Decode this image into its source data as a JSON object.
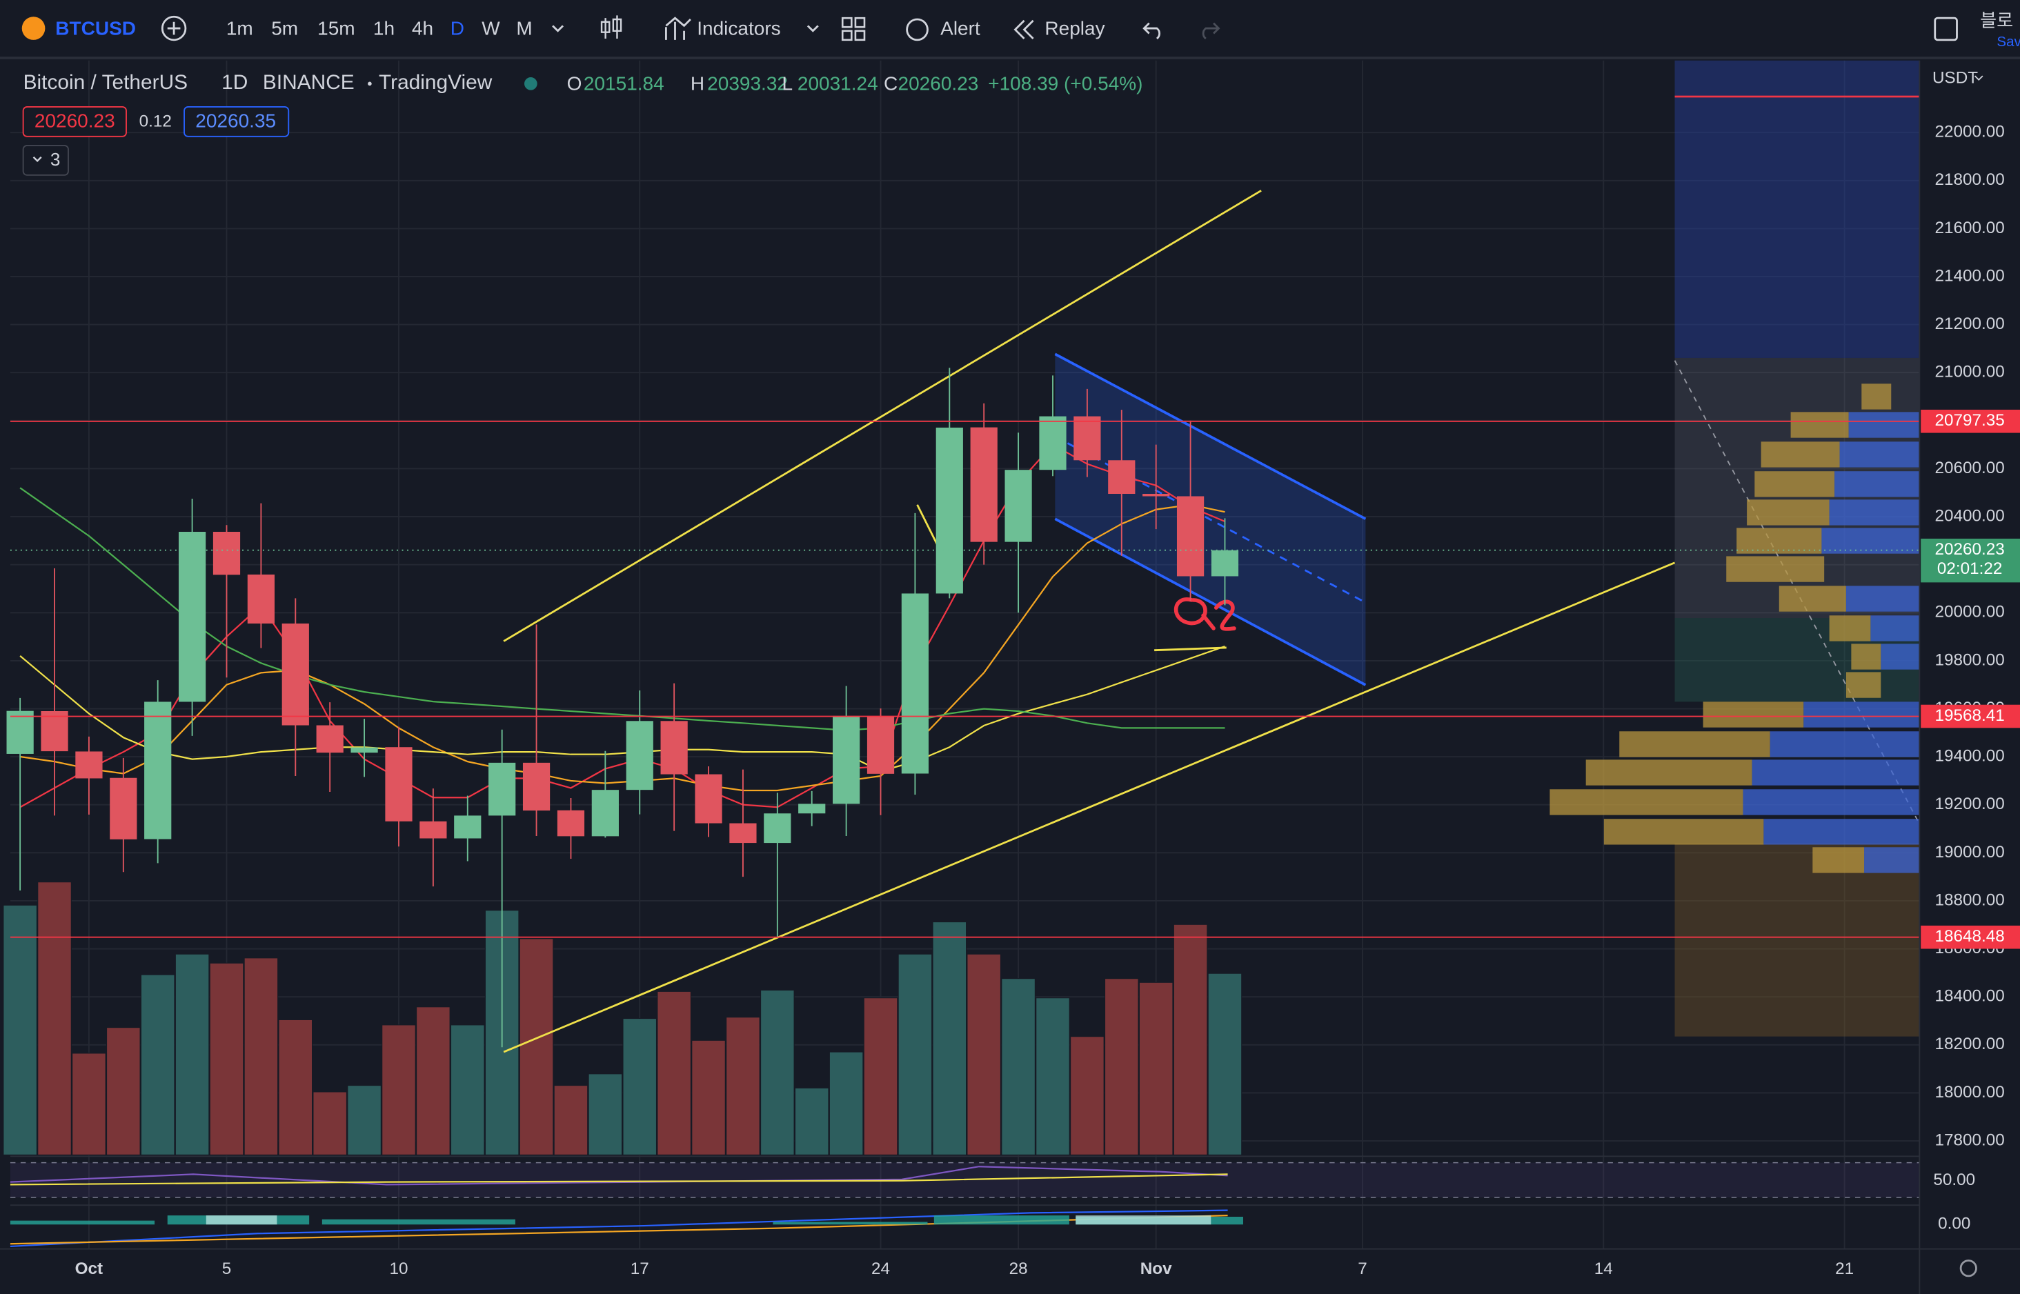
{
  "toolbar": {
    "symbol": "BTCUSD",
    "intervals": [
      "1m",
      "5m",
      "15m",
      "1h",
      "4h",
      "D",
      "W",
      "M"
    ],
    "indicators": "Indicators",
    "alert": "Alert",
    "replay": "Replay",
    "corner_top": "블로",
    "corner_bottom": "Sav"
  },
  "legend": {
    "name": "Bitcoin / TetherUS",
    "interval": "1D",
    "exchange": "BINANCE",
    "source": "TradingView",
    "o": "O",
    "h": "H",
    "l": "L",
    "c": "C",
    "change": "+108.39 (+0.54%)",
    "bid": 20260.23,
    "spread": 0.12,
    "ask": 20260.35,
    "indicator_count": "3"
  },
  "price_scale": {
    "currency": "USDT",
    "countdown": "02:01:22"
  },
  "chart_data": {
    "type": "candlestick",
    "categories": [
      null,
      null,
      "Oct",
      null,
      null,
      null,
      "5",
      null,
      null,
      null,
      null,
      "10",
      null,
      null,
      null,
      null,
      null,
      null,
      "17",
      null,
      null,
      null,
      null,
      null,
      null,
      "24",
      null,
      null,
      null,
      "28",
      null,
      null,
      null,
      "Nov",
      null,
      null,
      null,
      null,
      null,
      "7",
      null,
      null,
      null,
      null,
      null,
      null,
      "14",
      null,
      null,
      null,
      null,
      null,
      null,
      "21",
      null
    ],
    "open": [
      19412,
      19590,
      19422,
      19312,
      19057,
      19629,
      20337,
      20159,
      19955,
      19531,
      19417,
      19440,
      19131,
      19060,
      19155,
      19375,
      19177,
      19069,
      19262,
      19549,
      19327,
      19123,
      19041,
      19164,
      19204,
      19570,
      19330,
      20080,
      20772,
      20295,
      20595,
      20818,
      20635,
      20495,
      20485,
      20151.84,
      null,
      null,
      null,
      null,
      null,
      null,
      null,
      null,
      null,
      null,
      null,
      null,
      null,
      null,
      null,
      null,
      null,
      null,
      null
    ],
    "high": [
      19645,
      20185,
      19484,
      19395,
      19719,
      20475,
      20365,
      20456,
      20060,
      19627,
      19558,
      19525,
      19268,
      19238,
      19513,
      19951,
      19228,
      19424,
      19676,
      19706,
      19360,
      19347,
      19250,
      19257,
      19695,
      19601,
      20415,
      21020,
      20872,
      20750,
      20988,
      20932,
      20845,
      20700,
      20800,
      20393.32,
      null,
      null,
      null,
      null,
      null,
      null,
      null,
      null,
      null,
      null,
      null,
      null,
      null,
      null,
      null,
      null,
      null,
      null,
      null
    ],
    "low": [
      18843,
      19155,
      19159,
      18920,
      18957,
      19487,
      19730,
      19853,
      19320,
      19254,
      19316,
      19026,
      18860,
      18965,
      18190,
      19070,
      18975,
      19063,
      19160,
      19091,
      19066,
      18900,
      18650,
      19111,
      19070,
      19157,
      19242,
      20060,
      20200,
      20000,
      20569,
      20565,
      20237,
      20348,
      20048,
      20031.24,
      null,
      null,
      null,
      null,
      null,
      null,
      null,
      null,
      null,
      null,
      null,
      null,
      null,
      null,
      null,
      null,
      null,
      null,
      null
    ],
    "close": [
      19591,
      19423,
      19310,
      19056,
      19629,
      20337,
      20158,
      19955,
      19531,
      19417,
      19439,
      19131,
      19060,
      19155,
      19375,
      19176,
      19069,
      19262,
      19549,
      19327,
      19123,
      19041,
      19164,
      19204,
      19570,
      19329,
      20080,
      20771,
      20295,
      20595,
      20818,
      20635,
      20495,
      20485,
      20151.84,
      20260.23,
      null,
      null,
      null,
      null,
      null,
      null,
      null,
      null,
      null,
      null,
      null,
      null,
      null,
      null,
      null,
      null,
      null,
      null,
      null
    ],
    "volume": [
      582000,
      636000,
      237000,
      297000,
      420000,
      468000,
      447000,
      459000,
      315000,
      147000,
      162000,
      303000,
      345000,
      303000,
      570000,
      504000,
      162000,
      189000,
      318000,
      381000,
      267000,
      321000,
      384000,
      156000,
      240000,
      366000,
      468000,
      543000,
      468000,
      411000,
      366000,
      276000,
      411000,
      402000,
      537000,
      423000,
      null,
      null,
      null,
      null,
      null,
      null,
      null,
      null,
      null,
      null,
      null,
      null,
      null,
      null,
      null,
      null,
      null,
      null,
      null
    ],
    "volume_lim": [
      0,
      900000
    ],
    "up_color": "#6dbf95",
    "down_color": "#e0555f",
    "volume_up_color": "#2d5e5e",
    "volume_down_color": "#7a3538",
    "lines": [
      {
        "color": "#f23645",
        "values": [
          19190,
          19270,
          19350,
          19420,
          19500,
          19740,
          19900,
          20030,
          19820,
          19550,
          19390,
          19310,
          19230,
          19230,
          19310,
          19310,
          19270,
          19350,
          19390,
          19350,
          19260,
          19200,
          19190,
          19270,
          19350,
          19360,
          19770,
          20030,
          20300,
          20540,
          20700,
          20620,
          20570,
          20530,
          20440,
          20380,
          null,
          null,
          null,
          null,
          null,
          null,
          null,
          null,
          null,
          null,
          null,
          null,
          null,
          null,
          null,
          null,
          null,
          null,
          null
        ]
      },
      {
        "color": "#f5a623",
        "values": [
          19400,
          19380,
          19350,
          19330,
          19400,
          19550,
          19700,
          19750,
          19760,
          19700,
          19620,
          19520,
          19440,
          19380,
          19350,
          19330,
          19300,
          19290,
          19300,
          19310,
          19280,
          19260,
          19260,
          19280,
          19300,
          19320,
          19450,
          19600,
          19750,
          19950,
          20150,
          20290,
          20370,
          20430,
          20450,
          20420,
          null,
          null,
          null,
          null,
          null,
          null,
          null,
          null,
          null,
          null,
          null,
          null,
          null,
          null,
          null,
          null,
          null,
          null,
          null
        ]
      },
      {
        "color": "#f0e14a",
        "values": [
          19820,
          19700,
          19580,
          19480,
          19420,
          19390,
          19400,
          19420,
          19430,
          19440,
          19440,
          19430,
          19420,
          19410,
          19420,
          19420,
          19410,
          19410,
          19420,
          19430,
          19430,
          19420,
          19420,
          19420,
          19410,
          19340,
          19380,
          19440,
          19530,
          19580,
          19620,
          19660,
          19710,
          19760,
          19810,
          19860,
          null,
          null,
          null,
          null,
          null,
          null,
          null,
          null,
          null,
          null,
          null,
          null,
          null,
          null,
          null,
          null,
          null,
          null,
          null
        ]
      },
      {
        "color": "#4caf50",
        "values": [
          20520,
          20420,
          20320,
          20200,
          20080,
          19960,
          19860,
          19790,
          19740,
          19700,
          19670,
          19650,
          19630,
          19620,
          19610,
          19600,
          19590,
          19580,
          19570,
          19560,
          19550,
          19540,
          19530,
          19520,
          19510,
          19520,
          19550,
          19580,
          19600,
          19590,
          19570,
          19540,
          19520,
          19520,
          19520,
          19520,
          null,
          null,
          null,
          null,
          null,
          null,
          null,
          null,
          null,
          null,
          null,
          null,
          null,
          null,
          null,
          null,
          null,
          null,
          null
        ]
      }
    ],
    "price_lines": [
      20797.35,
      19568.41,
      18648.48
    ],
    "price_line_color": "#f23645",
    "ylim": [
      17350,
      22300
    ],
    "yticks": [
      {
        "value": 17800,
        "label": "17800.00"
      },
      {
        "value": 18000,
        "label": "18000.00"
      },
      {
        "value": 18200,
        "label": "18200.00"
      },
      {
        "value": 18400,
        "label": "18400.00"
      },
      {
        "value": 18600,
        "label": "18600.00"
      },
      {
        "value": 18800,
        "label": "18800.00"
      },
      {
        "value": 19000,
        "label": "19000.00"
      },
      {
        "value": 19200,
        "label": "19200.00"
      },
      {
        "value": 19400,
        "label": "19400.00"
      },
      {
        "value": 19600,
        "label": "19600.00"
      },
      {
        "value": 19800,
        "label": "19800.00"
      },
      {
        "value": 20000,
        "label": "20000.00"
      },
      {
        "value": 20200,
        "label": "20200.00"
      },
      {
        "value": 20400,
        "label": "20400.00"
      },
      {
        "value": 20600,
        "label": "20600.00"
      },
      {
        "value": 20800,
        "label": "20800.00"
      },
      {
        "value": 21000,
        "label": "21000.00"
      },
      {
        "value": 21200,
        "label": "21200.00"
      },
      {
        "value": 21400,
        "label": "21400.00"
      },
      {
        "value": 21600,
        "label": "21600.00"
      },
      {
        "value": 21800,
        "label": "21800.00"
      },
      {
        "value": 22000,
        "label": "22000.00"
      }
    ],
    "indicator_ticks": [
      {
        "value": 50,
        "label": "50.00"
      },
      {
        "value": 0,
        "label": "0.00"
      }
    ],
    "grid": true
  }
}
